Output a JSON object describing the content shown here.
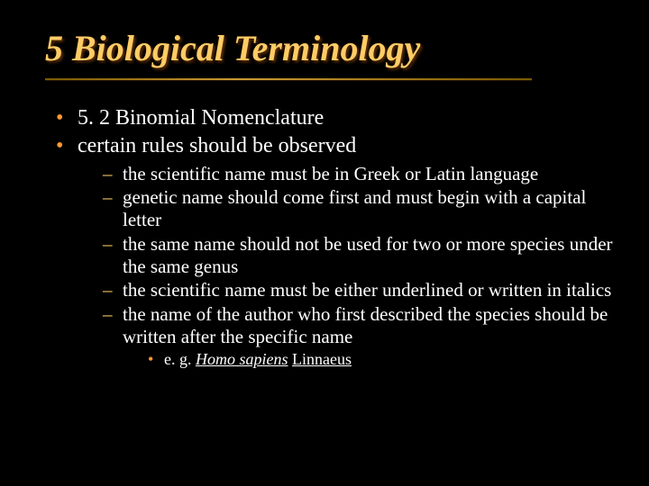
{
  "colors": {
    "background": "#000000",
    "title_color": "#ffcc66",
    "title_shadow": "#663300",
    "body_text": "#ffffff",
    "bullet_l1": "#ff9933",
    "bullet_l2": "#ffcc66",
    "bullet_l3": "#ff9933",
    "underline_mid": "#cc9933",
    "underline_end": "#7a5a00"
  },
  "typography": {
    "family": "Times New Roman",
    "title_size_pt": 40,
    "title_italic": true,
    "title_bold": true,
    "l1_size_pt": 24,
    "l2_size_pt": 21,
    "l3_size_pt": 18
  },
  "title": "5 Biological Terminology",
  "l1_item0": "5. 2 Binomial Nomenclature",
  "l1_item1": "certain rules should be observed",
  "l2_item0": "the scientific name must be in Greek or Latin language",
  "l2_item1": "genetic name should come first and must begin with a capital letter",
  "l2_item2": "the same name should not be used for two or more species under the same genus",
  "l2_item3": "the scientific name must be either underlined or written in italics",
  "l2_item4": "the name of the author who first described the species should be written after the specific name",
  "l3_prefix": "e. g. ",
  "l3_binomial": "Homo sapiens",
  "l3_space": " ",
  "l3_author": "Linnaeus"
}
